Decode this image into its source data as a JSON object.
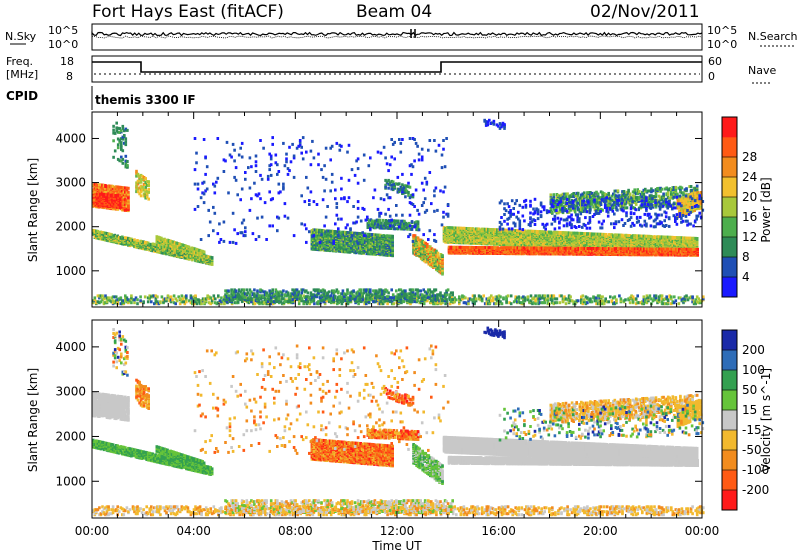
{
  "header": {
    "radar": "Fort Hays East (fitACF)",
    "beam": "Beam 04",
    "date": "02/Nov/2011"
  },
  "noise_panel": {
    "left_label": "N.Sky",
    "right_label": "N.Search",
    "left_ticks": [
      "10^5",
      "10^0"
    ],
    "right_ticks": [
      "10^5",
      "10^0"
    ]
  },
  "freq_panel": {
    "left_label_1": "Freq.",
    "left_label_2": "[MHz]",
    "right_label": "Nave",
    "left_ticks": [
      "18",
      "8"
    ],
    "right_ticks": [
      "60",
      "0"
    ]
  },
  "cpid": {
    "label": "CPID",
    "text": "themis 3300 IF"
  },
  "x_axis": {
    "label": "Time UT",
    "ticks": [
      "00:00",
      "04:00",
      "08:00",
      "12:00",
      "16:00",
      "20:00",
      "00:00"
    ]
  },
  "chart_data": [
    {
      "type": "heatmap",
      "name": "power",
      "ylabel": "Slant Range [km]",
      "yticks": [
        "1000",
        "2000",
        "3000",
        "4000"
      ],
      "colorbar_label": "Power [dB]",
      "colorbar_ticks": [
        "4",
        "8",
        "12",
        "16",
        "20",
        "24",
        "28"
      ],
      "colors": [
        "#1a1aff",
        "#1f4fb5",
        "#2e8b57",
        "#4dae4d",
        "#a8c83b",
        "#f2c02e",
        "#f28c1e",
        "#ff5a14",
        "#ff1a1a"
      ],
      "xlim_hours": [
        0,
        24
      ],
      "ylim_km": [
        180,
        4600
      ]
    },
    {
      "type": "heatmap",
      "name": "velocity",
      "ylabel": "Slant Range [km]",
      "yticks": [
        "1000",
        "2000",
        "3000",
        "4000"
      ],
      "colorbar_label": "Velocity [m s^-1]",
      "colorbar_ticks": [
        "200",
        "100",
        "50",
        "15",
        "-15",
        "-50",
        "-100",
        "-200"
      ],
      "colors": [
        "#1a2aa8",
        "#2e6db8",
        "#33a050",
        "#66c43a",
        "#c8c8c8",
        "#f2b92e",
        "#f28c1e",
        "#ff5a14",
        "#ff1a1a"
      ],
      "xlim_hours": [
        0,
        24
      ],
      "ylim_km": [
        180,
        4600
      ]
    }
  ]
}
